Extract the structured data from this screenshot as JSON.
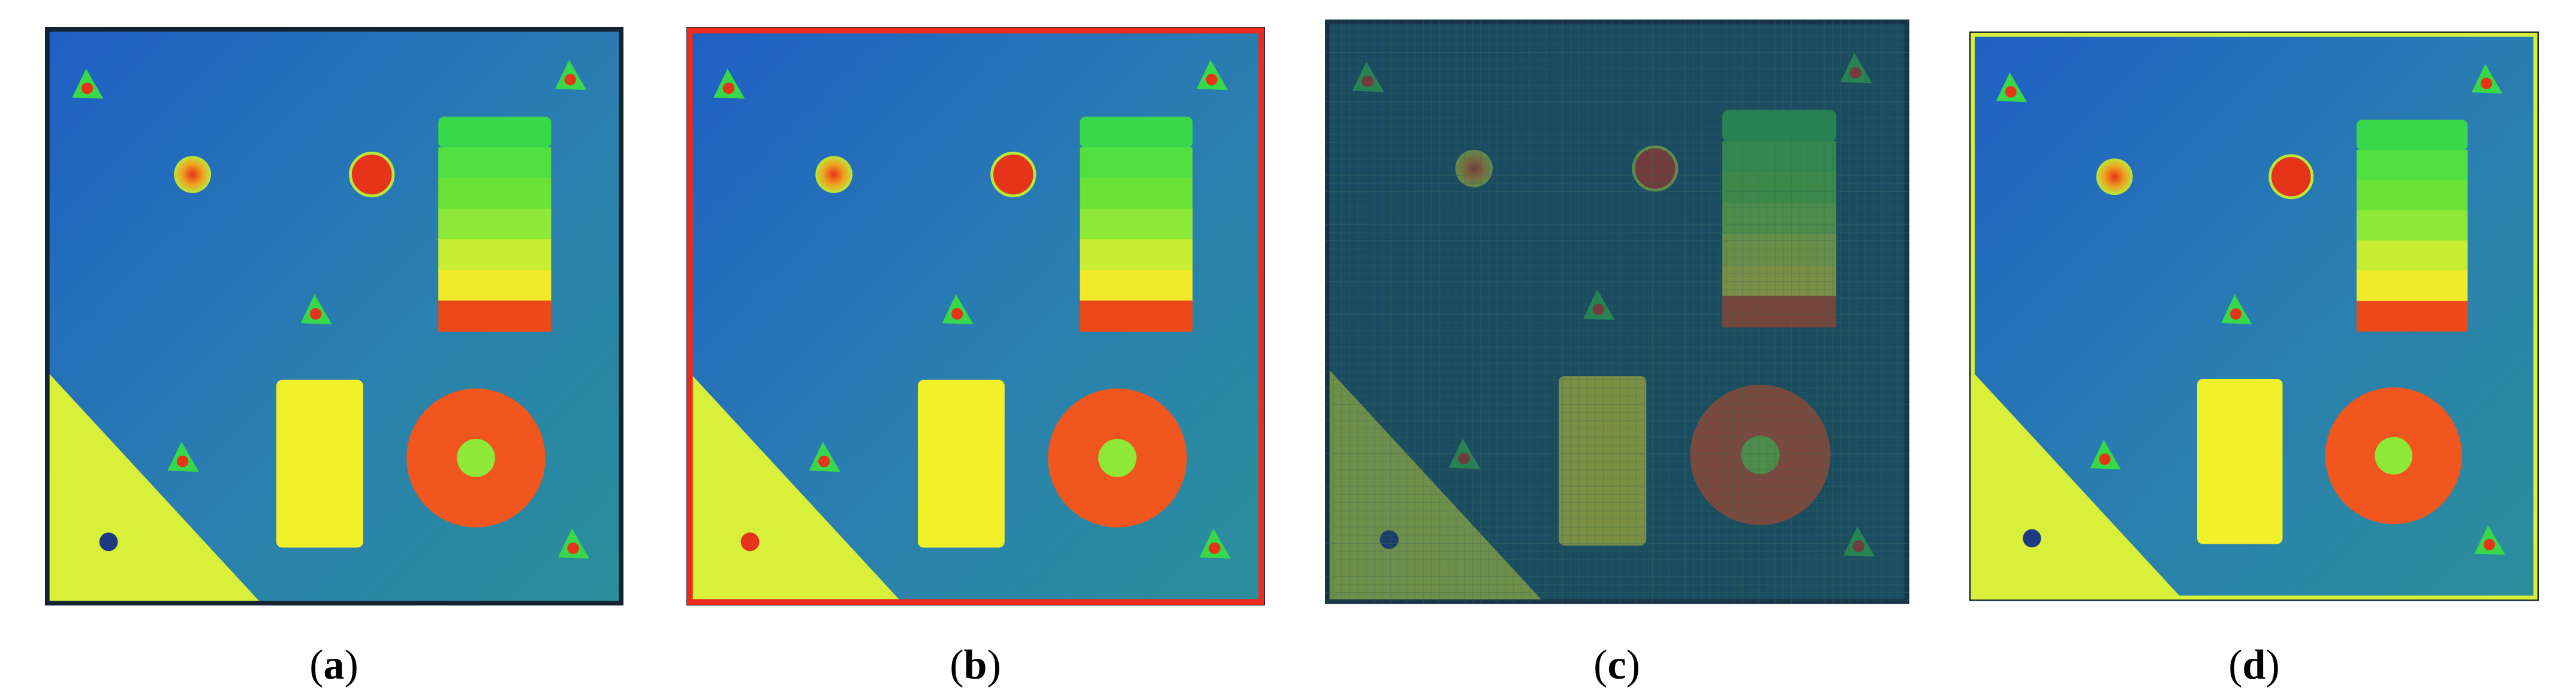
{
  "figure": {
    "panels": [
      {
        "id": "a",
        "caption": "a",
        "variant": "clean"
      },
      {
        "id": "b",
        "caption": "b",
        "variant": "red-border"
      },
      {
        "id": "c",
        "caption": "c",
        "variant": "mesh-dark"
      },
      {
        "id": "d",
        "caption": "d",
        "variant": "yellow-edge"
      }
    ]
  },
  "colors": {
    "plate_blue": "#1f5fc4",
    "plate_teal": "#2a8f9a",
    "green": "#39d84a",
    "yellow_green": "#d8f03a",
    "yellow": "#f2f02a",
    "orange_red": "#f0561e",
    "red": "#e5341a",
    "frame": "#14232f"
  }
}
